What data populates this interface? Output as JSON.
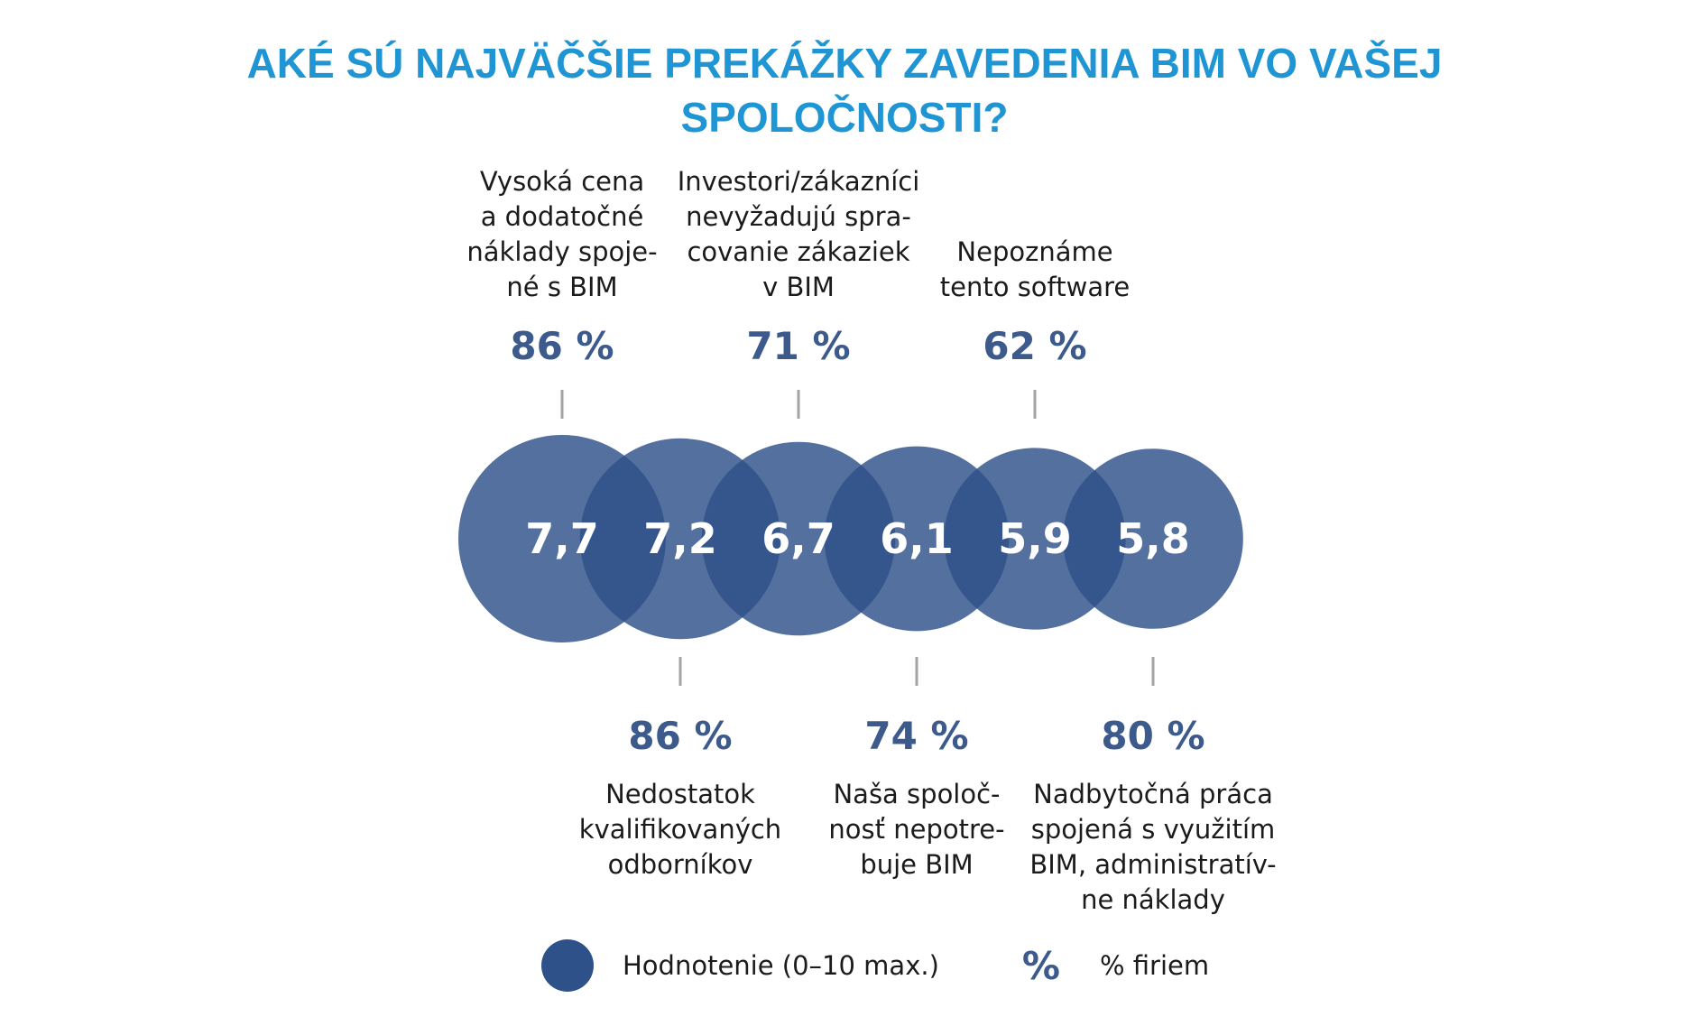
{
  "title": {
    "line1": "AKÉ SÚ NAJVÄČŠIE PREKÁŽKY ZAVEDENIA BIM VO VAŠEJ",
    "line2": "SPOLOČNOSTI?"
  },
  "legend": {
    "rating_label": "Hodnotenie (0–10 max.)",
    "percent_symbol": "%",
    "percent_label": "% firiem"
  },
  "colors": {
    "title": "#1f96d3",
    "bubble": "#2e5189",
    "percent": "#3c5a8c",
    "connector": "#a3a3a3"
  },
  "chart_data": {
    "type": "bubble",
    "title": "AKÉ SÚ NAJVÄČŠIE PREKÁŽKY ZAVEDENIA BIM VO VAŠEJ SPOLOČNOSTI?",
    "rating_scale": [
      0,
      10
    ],
    "items": [
      {
        "rating": 7.7,
        "rating_label": "7,7",
        "percent": 86,
        "percent_label": "86 %",
        "position": "top",
        "label_lines": [
          "Vysoká cena",
          "a dodatočné",
          "náklady spoje-",
          "né s BIM"
        ]
      },
      {
        "rating": 7.2,
        "rating_label": "7,2",
        "percent": 86,
        "percent_label": "86 %",
        "position": "bottom",
        "label_lines": [
          "Nedostatok",
          "kvalifikovaných",
          "odborníkov"
        ]
      },
      {
        "rating": 6.7,
        "rating_label": "6,7",
        "percent": 71,
        "percent_label": "71 %",
        "position": "top",
        "label_lines": [
          "Investori/zákazníci",
          "nevyžadujú spra-",
          "covanie zákaziek",
          "v BIM"
        ]
      },
      {
        "rating": 6.1,
        "rating_label": "6,1",
        "percent": 74,
        "percent_label": "74 %",
        "position": "bottom",
        "label_lines": [
          "Naša spoloč-",
          "nosť nepotre-",
          "buje BIM"
        ]
      },
      {
        "rating": 5.9,
        "rating_label": "5,9",
        "percent": 62,
        "percent_label": "62 %",
        "position": "top",
        "label_lines": [
          "Nepoznáme",
          "tento software"
        ]
      },
      {
        "rating": 5.8,
        "rating_label": "5,8",
        "percent": 80,
        "percent_label": "80 %",
        "position": "bottom",
        "label_lines": [
          "Nadbytočná práca",
          "spojená s využitím",
          "BIM, administratív-",
          "ne náklady"
        ]
      }
    ]
  }
}
